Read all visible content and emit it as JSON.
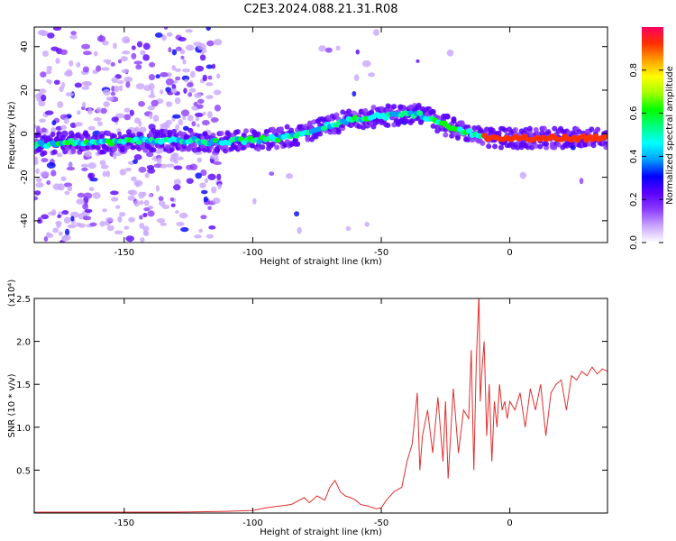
{
  "title": "C2E3.2024.088.21.31.R08",
  "colors": {
    "snr_line": "#e03030",
    "axis": "#000000"
  },
  "chart_data": [
    {
      "type": "heatmap",
      "xlabel": "Height of straight line (km)",
      "ylabel": "Frequency (Hz)",
      "xlim": [
        -185,
        38
      ],
      "ylim": [
        -50,
        49
      ],
      "x_ticks": [
        -150,
        -100,
        -50,
        0
      ],
      "x_tick_labels": [
        "-150",
        "-100",
        "-50",
        "0"
      ],
      "y_ticks": [
        -40,
        -20,
        0,
        20,
        40
      ],
      "y_tick_labels": [
        "-40",
        "-20",
        "0",
        "20",
        "40"
      ],
      "colorbar": {
        "label": "Normalized spectral amplitude",
        "range": [
          0,
          1
        ],
        "ticks": [
          0.0,
          0.2,
          0.4,
          0.6,
          0.8
        ],
        "tick_labels": [
          "0.0",
          "0.2",
          "0.4",
          "0.6",
          "0.8"
        ],
        "colormap": [
          "#ffffff",
          "#c9a6ff",
          "#8c3cff",
          "#5a00ff",
          "#0000ff",
          "#00a0ff",
          "#00ffff",
          "#00ff80",
          "#00ff00",
          "#a0ff00",
          "#ffff00",
          "#ffa000",
          "#ff3000",
          "#ff0060"
        ]
      },
      "ridge": [
        {
          "x": -183,
          "y": -5
        },
        {
          "x": -170,
          "y": -4
        },
        {
          "x": -155,
          "y": -4
        },
        {
          "x": -140,
          "y": -3
        },
        {
          "x": -125,
          "y": -3
        },
        {
          "x": -115,
          "y": -4
        },
        {
          "x": -100,
          "y": -3
        },
        {
          "x": -90,
          "y": -2
        },
        {
          "x": -80,
          "y": 0
        },
        {
          "x": -70,
          "y": 4
        },
        {
          "x": -60,
          "y": 7
        },
        {
          "x": -50,
          "y": 8
        },
        {
          "x": -40,
          "y": 9
        },
        {
          "x": -35,
          "y": 9
        },
        {
          "x": -28,
          "y": 5
        },
        {
          "x": -20,
          "y": 2
        },
        {
          "x": -12,
          "y": -1
        },
        {
          "x": -5,
          "y": -2
        },
        {
          "x": 10,
          "y": -2
        },
        {
          "x": 38,
          "y": -2
        }
      ]
    },
    {
      "type": "line",
      "xlabel": "Height of straight line (km)",
      "ylabel": "SNR (10 * v/v)",
      "y_multiplier": "(x10⁴)",
      "xlim": [
        -185,
        38
      ],
      "ylim": [
        0,
        2.5
      ],
      "x_ticks": [
        -150,
        -100,
        -50,
        0
      ],
      "x_tick_labels": [
        "-150",
        "-100",
        "-50",
        "0"
      ],
      "y_ticks": [
        0.5,
        1.0,
        1.5,
        2.0,
        2.5
      ],
      "y_tick_labels": [
        "0.5",
        "1.0",
        "1.5",
        "2.0",
        "2.5"
      ],
      "series": [
        {
          "x": [
            -185,
            -160,
            -130,
            -110,
            -100,
            -95,
            -90,
            -85,
            -80,
            -78,
            -75,
            -72,
            -70,
            -68,
            -66,
            -64,
            -62,
            -60,
            -58,
            -55,
            -52,
            -50,
            -48,
            -45,
            -42,
            -40,
            -38,
            -36,
            -35,
            -34,
            -32,
            -30,
            -28,
            -26,
            -25,
            -24,
            -22,
            -20,
            -18,
            -16,
            -15,
            -14,
            -13,
            -12,
            -11.5,
            -11,
            -10,
            -9,
            -8,
            -7,
            -6,
            -5,
            -4,
            -3,
            -2,
            -1,
            0,
            2,
            4,
            6,
            8,
            10,
            12,
            14,
            16,
            18,
            20,
            22,
            24,
            26,
            28,
            30,
            32,
            34,
            36,
            38
          ],
          "y": [
            0.01,
            0.01,
            0.01,
            0.02,
            0.03,
            0.06,
            0.08,
            0.1,
            0.18,
            0.12,
            0.2,
            0.15,
            0.3,
            0.38,
            0.25,
            0.2,
            0.18,
            0.15,
            0.1,
            0.08,
            0.05,
            0.06,
            0.15,
            0.25,
            0.3,
            0.6,
            0.8,
            1.4,
            0.5,
            0.9,
            1.2,
            0.7,
            1.35,
            0.6,
            1.3,
            0.4,
            1.45,
            0.7,
            1.2,
            1.1,
            1.9,
            0.5,
            1.8,
            2.55,
            1.3,
            1.6,
            2.0,
            0.9,
            1.5,
            0.6,
            1.3,
            1.0,
            1.5,
            1.2,
            1.3,
            1.1,
            1.3,
            1.2,
            1.4,
            1.0,
            1.45,
            1.2,
            1.5,
            0.9,
            1.4,
            1.5,
            1.55,
            1.2,
            1.6,
            1.55,
            1.65,
            1.6,
            1.7,
            1.62,
            1.68,
            1.65
          ]
        }
      ]
    }
  ]
}
